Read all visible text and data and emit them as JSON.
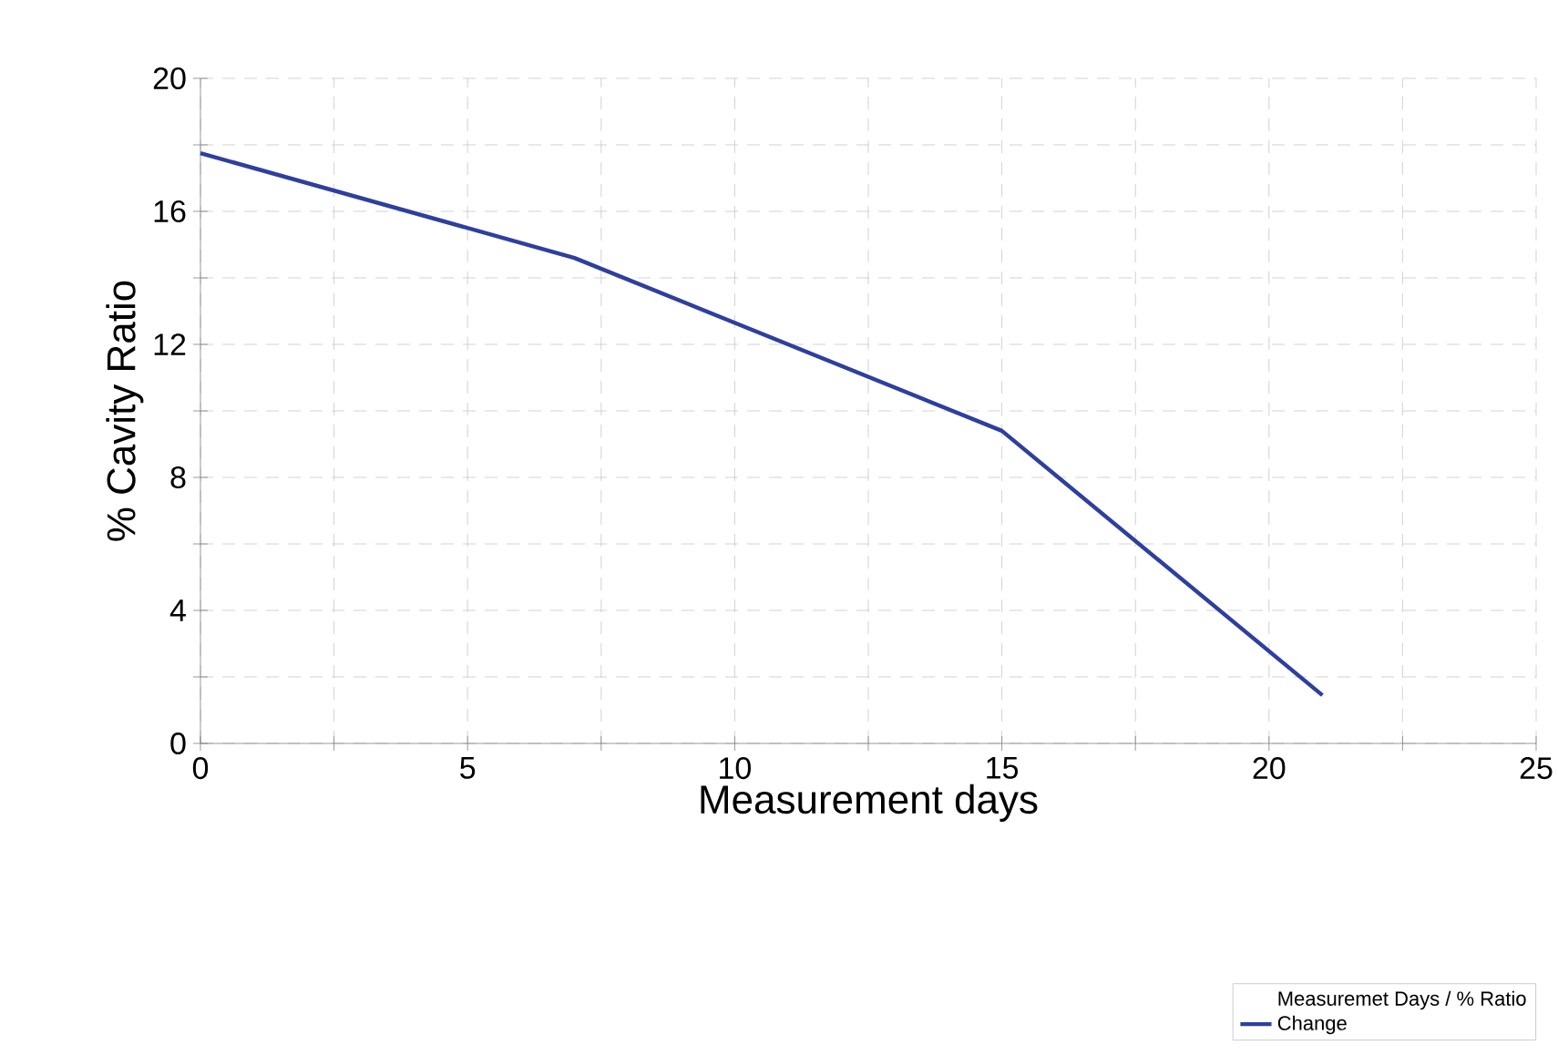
{
  "chart_data": {
    "type": "line",
    "xlabel": "Measurement days",
    "ylabel": "% Cavity Ratio",
    "legend_title": "Measuremet Days / % Ratio",
    "x": [
      0,
      7,
      15,
      21
    ],
    "series": [
      {
        "name": "Change",
        "color": "#2e3f9e",
        "values": [
          17.75,
          14.6,
          9.4,
          1.45
        ]
      }
    ],
    "xlim": [
      0,
      25
    ],
    "ylim": [
      0,
      20
    ],
    "xticks": [
      0,
      {
        "value": 2.5,
        "label": null
      },
      5,
      {
        "value": 7.5,
        "label": null
      },
      10,
      {
        "value": 12.5,
        "label": null
      },
      15,
      {
        "value": 17.5,
        "label": null
      },
      20,
      {
        "value": 22.5,
        "label": null
      },
      25
    ],
    "yticks": [
      0,
      {
        "value": 2,
        "label": null
      },
      4,
      {
        "value": 6,
        "label": null
      },
      8,
      {
        "value": 10,
        "label": null
      },
      12,
      {
        "value": 14,
        "label": null
      },
      16,
      {
        "value": 18,
        "label": null
      },
      20
    ],
    "grid": true,
    "legend": "bottom right",
    "line_style": "solid"
  }
}
